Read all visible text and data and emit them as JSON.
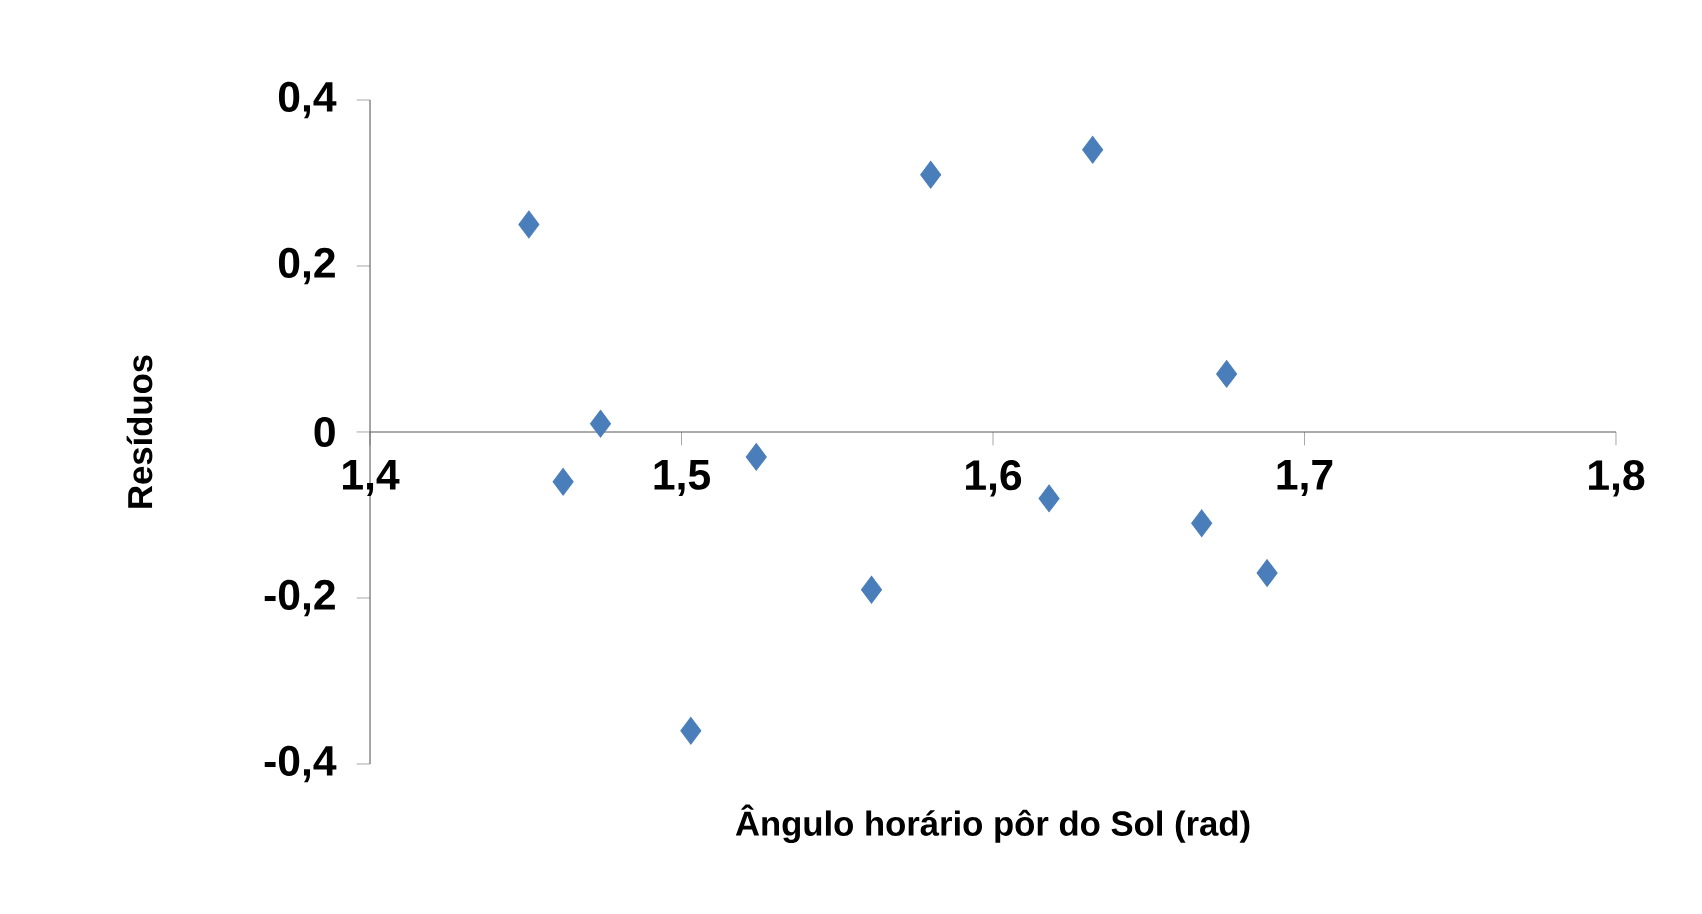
{
  "chart_data": {
    "type": "scatter",
    "xlabel": "Ângulo horário pôr do Sol (rad)",
    "ylabel": "Resíduos",
    "x": [
      1.451,
      1.462,
      1.474,
      1.503,
      1.524,
      1.561,
      1.58,
      1.618,
      1.632,
      1.667,
      1.675,
      1.688
    ],
    "values": [
      0.25,
      -0.06,
      0.01,
      -0.36,
      -0.03,
      -0.19,
      0.31,
      -0.08,
      0.34,
      -0.11,
      0.07,
      -0.17
    ],
    "color": "#4a7ebb",
    "marker": "diamond",
    "grid": false,
    "xlim": [
      1.4,
      1.8
    ],
    "ylim": [
      -0.4,
      0.4
    ],
    "xticks": [
      {
        "value": 1.4,
        "label": "1,4"
      },
      {
        "value": 1.5,
        "label": "1,5"
      },
      {
        "value": 1.6,
        "label": "1,6"
      },
      {
        "value": 1.7,
        "label": "1,7"
      },
      {
        "value": 1.8,
        "label": "1,8"
      }
    ],
    "yticks": [
      {
        "value": -0.4,
        "label": "-0,4"
      },
      {
        "value": -0.2,
        "label": "-0,2"
      },
      {
        "value": 0,
        "label": "0"
      },
      {
        "value": 0.2,
        "label": "0,2"
      },
      {
        "value": 0.4,
        "label": "0,4"
      }
    ]
  }
}
